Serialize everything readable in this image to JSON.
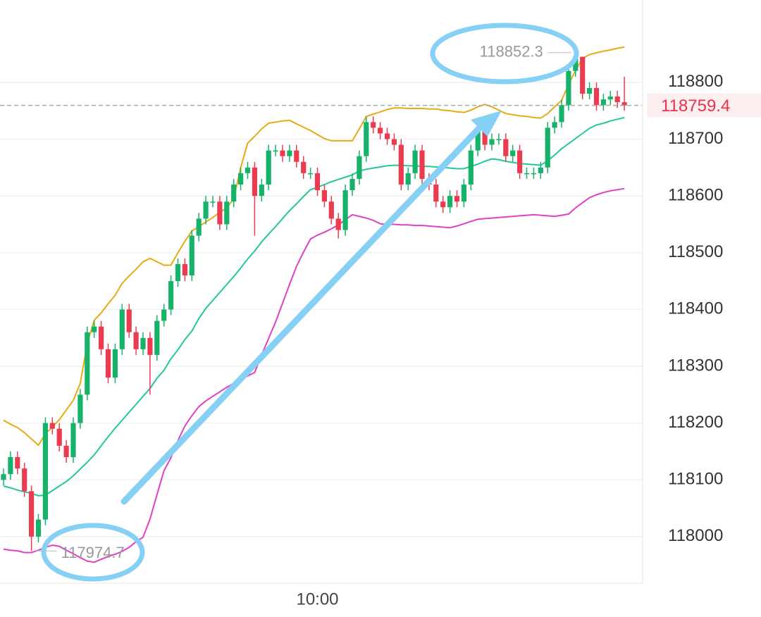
{
  "chart_data": {
    "type": "candlestick",
    "categories": [
      null,
      null,
      null,
      null,
      null,
      null,
      null,
      null,
      null,
      null,
      null,
      null,
      null,
      null,
      null,
      null,
      null,
      null,
      null,
      null,
      null,
      null,
      null,
      null,
      null,
      null,
      null,
      null,
      null,
      null,
      null,
      null,
      null,
      null,
      null,
      null,
      null,
      null,
      null,
      null,
      null,
      null,
      null,
      null,
      null,
      "10:00",
      null,
      null,
      null,
      null,
      null,
      null,
      null,
      null,
      null,
      null,
      null,
      null,
      null,
      null,
      null,
      null,
      null,
      null,
      null,
      null,
      null,
      null,
      null,
      null,
      null,
      null,
      null,
      null,
      null,
      null,
      null,
      null,
      null,
      null,
      null,
      null,
      null,
      null,
      null,
      null,
      null,
      null,
      null,
      null
    ],
    "open": [
      118100,
      118110,
      118140,
      118120,
      118080,
      118000,
      118030,
      118200,
      118190,
      118160,
      118140,
      118200,
      118250,
      118360,
      118370,
      118330,
      118280,
      118330,
      118400,
      118360,
      118330,
      118350,
      118320,
      118380,
      118400,
      118450,
      118480,
      118460,
      118530,
      118560,
      118590,
      118590,
      118550,
      118590,
      118620,
      118640,
      118650,
      118600,
      118620,
      118680,
      118680,
      118670,
      118680,
      118660,
      118640,
      118640,
      118610,
      118590,
      118560,
      118540,
      118610,
      118630,
      118670,
      118730,
      118720,
      118710,
      118700,
      118690,
      118620,
      118640,
      118680,
      118630,
      118620,
      118590,
      118580,
      118600,
      118590,
      118620,
      118680,
      118720,
      118690,
      118700,
      118700,
      118670,
      118680,
      118640,
      118640,
      118640,
      118650,
      118720,
      118730,
      118760,
      118820,
      118845,
      118780,
      118790,
      118760,
      118770,
      118775,
      118765
    ],
    "high": [
      118120,
      118150,
      118150,
      118130,
      118090,
      118040,
      118210,
      118210,
      118200,
      118170,
      118210,
      118260,
      118370,
      118380,
      118380,
      118340,
      118340,
      118410,
      118410,
      118370,
      118360,
      118360,
      118390,
      118410,
      118460,
      118490,
      118490,
      118540,
      118570,
      118600,
      118600,
      118600,
      118600,
      118630,
      118650,
      118660,
      118660,
      118630,
      118690,
      118690,
      118690,
      118690,
      118690,
      118670,
      118650,
      118650,
      118620,
      118600,
      118570,
      118620,
      118640,
      118680,
      118740,
      118740,
      118730,
      118720,
      118710,
      118700,
      118650,
      118690,
      118690,
      118640,
      118630,
      118600,
      118610,
      118610,
      118630,
      118690,
      118730,
      118730,
      118710,
      118710,
      118710,
      118690,
      118690,
      118650,
      118650,
      118660,
      118730,
      118740,
      118770,
      118830,
      118852.3,
      118845,
      118800,
      118800,
      118780,
      118785,
      118785,
      118810
    ],
    "low": [
      118090,
      118100,
      118110,
      118070,
      117974.7,
      117990,
      118020,
      118180,
      118150,
      118130,
      118130,
      118190,
      118240,
      118350,
      118320,
      118270,
      118270,
      118320,
      118350,
      118320,
      118320,
      118250,
      118310,
      118370,
      118390,
      118440,
      118450,
      118450,
      118520,
      118550,
      118580,
      118540,
      118540,
      118580,
      118610,
      118630,
      118530,
      118590,
      118610,
      118670,
      118660,
      118660,
      118650,
      118630,
      118630,
      118600,
      118580,
      118550,
      118525,
      118530,
      118600,
      118620,
      118660,
      118710,
      118700,
      118690,
      118680,
      118610,
      118610,
      118630,
      118620,
      118610,
      118580,
      118570,
      118570,
      118580,
      118580,
      118610,
      118670,
      118680,
      118680,
      118690,
      118660,
      118660,
      118630,
      118630,
      118630,
      118630,
      118640,
      118710,
      118720,
      118750,
      118810,
      118770,
      118770,
      118750,
      118750,
      118760,
      118755,
      118750
    ],
    "close": [
      118110,
      118140,
      118120,
      118080,
      118000,
      118030,
      118200,
      118190,
      118160,
      118140,
      118200,
      118250,
      118360,
      118370,
      118330,
      118280,
      118330,
      118400,
      118360,
      118330,
      118350,
      118320,
      118380,
      118400,
      118450,
      118480,
      118460,
      118530,
      118560,
      118590,
      118590,
      118550,
      118590,
      118620,
      118640,
      118650,
      118600,
      118620,
      118680,
      118680,
      118670,
      118680,
      118660,
      118640,
      118640,
      118610,
      118590,
      118560,
      118540,
      118610,
      118630,
      118670,
      118730,
      118720,
      118710,
      118700,
      118690,
      118620,
      118640,
      118680,
      118630,
      118620,
      118590,
      118580,
      118600,
      118590,
      118620,
      118680,
      118720,
      118690,
      118700,
      118700,
      118670,
      118680,
      118640,
      118640,
      118640,
      118650,
      118720,
      118730,
      118760,
      118820,
      118845,
      118780,
      118790,
      118760,
      118770,
      118775,
      118765,
      118759.4
    ],
    "up_color": "#17b26a",
    "down_color": "#eb3b50",
    "series": [
      {
        "color": "#e8aa14",
        "values": [
          118205,
          118198,
          118192,
          118183,
          118172,
          118161,
          118181,
          118193,
          118206,
          118223,
          118240,
          118270,
          118340,
          118381,
          118394,
          118410,
          118425,
          118446,
          118459,
          118471,
          118484,
          118490,
          118484,
          118478,
          118478,
          118500,
          118520,
          118538,
          118546,
          118554,
          118562,
          118571,
          118579,
          118595,
          118650,
          118693,
          118705,
          118718,
          118728,
          118730,
          118732,
          118733,
          118727,
          118721,
          118715,
          118708,
          118701,
          118697,
          118697,
          118697,
          118697,
          118718,
          118740,
          118744,
          118748,
          118752,
          118755,
          118755,
          118754,
          118754,
          118754,
          118753,
          118753,
          118751,
          118750,
          118748,
          118747,
          118751,
          118757,
          118761,
          118757,
          118751,
          118745,
          118743,
          118741,
          118740,
          118738,
          118737,
          118745,
          118757,
          118768,
          118796,
          118821,
          118842,
          118849,
          118852,
          118855,
          118857,
          118860,
          118862
        ]
      },
      {
        "color": "#22c7a0",
        "values": [
          118089,
          118086,
          118082,
          118079,
          118076,
          118072,
          118073,
          118081,
          118089,
          118097,
          118107,
          118119,
          118131,
          118144,
          118160,
          118176,
          118191,
          118205,
          118219,
          118233,
          118247,
          118261,
          118279,
          118293,
          118313,
          118329,
          118347,
          118362,
          118384,
          118402,
          118416,
          118430,
          118444,
          118458,
          118473,
          118489,
          118503,
          118519,
          118533,
          118546,
          118560,
          118574,
          118586,
          118599,
          118611,
          118615,
          118620,
          118625,
          118629,
          118633,
          118637,
          118644,
          118647,
          118649,
          118651,
          118653,
          118654,
          118654,
          118653,
          118653,
          118652,
          118652,
          118651,
          118650,
          118649,
          118648,
          118648,
          118652,
          118656,
          118661,
          118665,
          118664,
          118661,
          118659,
          118657,
          118656,
          118655,
          118654,
          118662,
          118672,
          118683,
          118692,
          118701,
          118710,
          118719,
          118725,
          118728,
          118732,
          118735,
          118738
        ]
      },
      {
        "color": "#e040c4",
        "values": [
          117978,
          117976,
          117975,
          117972,
          117972,
          117976,
          117981,
          117985,
          117983,
          117976,
          117970,
          117963,
          117957,
          117955,
          117960,
          117965,
          117969,
          117974,
          117981,
          117991,
          117999,
          118031,
          118074,
          118116,
          118139,
          118169,
          118195,
          118213,
          118229,
          118239,
          118247,
          118255,
          118263,
          118270,
          118277,
          118283,
          118289,
          118320,
          118349,
          118378,
          118411,
          118444,
          118476,
          118501,
          118524,
          118531,
          118536,
          118542,
          118549,
          118558,
          118567,
          118564,
          118561,
          118557,
          118551,
          118550,
          118550,
          118549,
          118549,
          118548,
          118548,
          118547,
          118546,
          118545,
          118544,
          118547,
          118551,
          118555,
          118559,
          118560,
          118561,
          118562,
          118563,
          118564,
          118565,
          118566,
          118567,
          118566,
          118565,
          118564,
          118566,
          118568,
          118579,
          118588,
          118597,
          118602,
          118606,
          118609,
          118611,
          118613
        ]
      }
    ],
    "ylim": [
      117918,
      118945
    ],
    "yticks": [
      118000,
      118100,
      118200,
      118300,
      118400,
      118500,
      118600,
      118700,
      118800
    ],
    "grid": true
  }
}
